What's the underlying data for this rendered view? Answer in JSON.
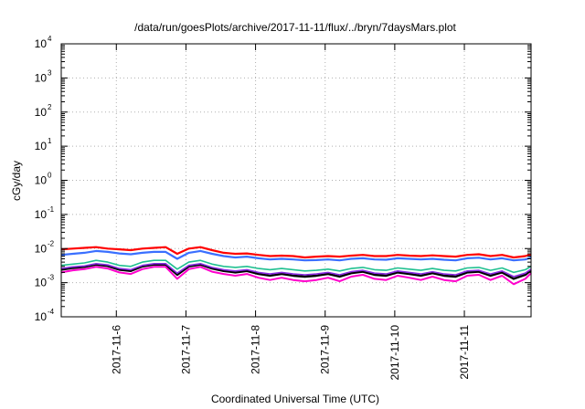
{
  "chart_data": {
    "type": "line",
    "title": "/data/run/goesPlots/archive/2017-11-11/flux/../bryn/7daysMars.plot",
    "xlabel": "Coordinated Universal Time (UTC)",
    "ylabel": "cGy/day",
    "yscale": "log",
    "ylim": [
      0.0001,
      10000
    ],
    "xlim": [
      "2017-11-05 05:00",
      "2017-11-11 23:00"
    ],
    "grid": true,
    "x_ticks": [
      "2017-11-6",
      "2017-11-7",
      "2017-11-8",
      "2017-11-9",
      "2017-11-10",
      "2017-11-11"
    ],
    "x_tick_dates": [
      "2017-11-06",
      "2017-11-07",
      "2017-11-08",
      "2017-11-09",
      "2017-11-10",
      "2017-11-11"
    ],
    "y_ticks": [
      {
        "value": 0.0001,
        "base": "10",
        "exp": "-4"
      },
      {
        "value": 0.001,
        "base": "10",
        "exp": "-3"
      },
      {
        "value": 0.01,
        "base": "10",
        "exp": "-2"
      },
      {
        "value": 0.1,
        "base": "10",
        "exp": "-1"
      },
      {
        "value": 1,
        "base": "10",
        "exp": "0"
      },
      {
        "value": 10,
        "base": "10",
        "exp": "1"
      },
      {
        "value": 100,
        "base": "10",
        "exp": "2"
      },
      {
        "value": 1000,
        "base": "10",
        "exp": "3"
      },
      {
        "value": 10000,
        "base": "10",
        "exp": "4"
      }
    ],
    "x": [
      "2017-11-05 05:00",
      "2017-11-05 09:00",
      "2017-11-05 13:00",
      "2017-11-05 17:00",
      "2017-11-05 21:00",
      "2017-11-06 01:00",
      "2017-11-06 05:00",
      "2017-11-06 09:00",
      "2017-11-06 13:00",
      "2017-11-06 17:00",
      "2017-11-06 21:00",
      "2017-11-07 01:00",
      "2017-11-07 05:00",
      "2017-11-07 09:00",
      "2017-11-07 13:00",
      "2017-11-07 17:00",
      "2017-11-07 21:00",
      "2017-11-08 01:00",
      "2017-11-08 05:00",
      "2017-11-08 09:00",
      "2017-11-08 13:00",
      "2017-11-08 17:00",
      "2017-11-08 21:00",
      "2017-11-09 01:00",
      "2017-11-09 05:00",
      "2017-11-09 09:00",
      "2017-11-09 13:00",
      "2017-11-09 17:00",
      "2017-11-09 21:00",
      "2017-11-10 01:00",
      "2017-11-10 05:00",
      "2017-11-10 09:00",
      "2017-11-10 13:00",
      "2017-11-10 17:00",
      "2017-11-10 21:00",
      "2017-11-11 01:00",
      "2017-11-11 05:00",
      "2017-11-11 09:00",
      "2017-11-11 13:00",
      "2017-11-11 17:00",
      "2017-11-11 21:00",
      "2017-11-11 23:00"
    ],
    "series": [
      {
        "color": "#ff0000",
        "width": 2.2,
        "values": [
          0.0095,
          0.01,
          0.0105,
          0.011,
          0.01,
          0.0095,
          0.009,
          0.01,
          0.0105,
          0.011,
          0.007,
          0.01,
          0.011,
          0.009,
          0.0075,
          0.007,
          0.0072,
          0.0065,
          0.006,
          0.0062,
          0.006,
          0.0055,
          0.0058,
          0.006,
          0.0058,
          0.0062,
          0.0065,
          0.006,
          0.006,
          0.0065,
          0.0062,
          0.006,
          0.0063,
          0.006,
          0.0058,
          0.0065,
          0.0068,
          0.006,
          0.0065,
          0.0055,
          0.006,
          0.0068
        ]
      },
      {
        "color": "#3a6fff",
        "width": 2.2,
        "values": [
          0.0065,
          0.007,
          0.0075,
          0.0085,
          0.008,
          0.0072,
          0.0068,
          0.0075,
          0.008,
          0.008,
          0.005,
          0.0075,
          0.0085,
          0.007,
          0.006,
          0.0055,
          0.0058,
          0.0052,
          0.0048,
          0.005,
          0.0048,
          0.0045,
          0.0046,
          0.0048,
          0.0045,
          0.005,
          0.0052,
          0.0048,
          0.0047,
          0.0052,
          0.005,
          0.0048,
          0.005,
          0.0047,
          0.0045,
          0.0052,
          0.0054,
          0.0048,
          0.0052,
          0.0045,
          0.0048,
          0.0055
        ]
      },
      {
        "color": "#20c090",
        "width": 1.6,
        "values": [
          0.0032,
          0.0035,
          0.0038,
          0.0045,
          0.004,
          0.0032,
          0.003,
          0.004,
          0.0045,
          0.0045,
          0.0025,
          0.004,
          0.0045,
          0.0035,
          0.003,
          0.0028,
          0.003,
          0.0026,
          0.0024,
          0.0026,
          0.0024,
          0.0022,
          0.0023,
          0.0025,
          0.0022,
          0.0026,
          0.0028,
          0.0024,
          0.0023,
          0.0027,
          0.0025,
          0.0023,
          0.0026,
          0.0023,
          0.0022,
          0.0027,
          0.0028,
          0.0023,
          0.0027,
          0.002,
          0.0024,
          0.003
        ]
      },
      {
        "color": "#000000",
        "width": 2.4,
        "values": [
          0.0024,
          0.0027,
          0.0029,
          0.0034,
          0.0031,
          0.0024,
          0.0022,
          0.003,
          0.0034,
          0.0034,
          0.0017,
          0.003,
          0.0034,
          0.0026,
          0.0022,
          0.002,
          0.0022,
          0.0018,
          0.0016,
          0.0018,
          0.0016,
          0.0015,
          0.0016,
          0.0018,
          0.0015,
          0.0019,
          0.0021,
          0.0017,
          0.0016,
          0.002,
          0.0018,
          0.0016,
          0.0019,
          0.0016,
          0.0015,
          0.002,
          0.0021,
          0.0016,
          0.002,
          0.0013,
          0.0017,
          0.0023
        ]
      },
      {
        "color": "#8a2be2",
        "width": 1.6,
        "values": [
          0.0026,
          0.0029,
          0.0031,
          0.0036,
          0.0033,
          0.0026,
          0.0024,
          0.0032,
          0.0036,
          0.0036,
          0.0019,
          0.0032,
          0.0036,
          0.0028,
          0.0024,
          0.0022,
          0.0024,
          0.002,
          0.0018,
          0.002,
          0.0018,
          0.0017,
          0.0018,
          0.002,
          0.0017,
          0.0021,
          0.0023,
          0.0019,
          0.0018,
          0.0022,
          0.002,
          0.0018,
          0.0021,
          0.0018,
          0.0017,
          0.0022,
          0.0023,
          0.0018,
          0.0022,
          0.0015,
          0.0019,
          0.0025
        ]
      },
      {
        "color": "#ff00cc",
        "width": 2.0,
        "values": [
          0.002,
          0.0023,
          0.0025,
          0.0029,
          0.0026,
          0.002,
          0.0018,
          0.0025,
          0.0029,
          0.0029,
          0.0013,
          0.0025,
          0.0029,
          0.0021,
          0.0018,
          0.0016,
          0.0018,
          0.0014,
          0.0012,
          0.0014,
          0.0012,
          0.0011,
          0.0012,
          0.0014,
          0.0011,
          0.0015,
          0.0017,
          0.0013,
          0.0012,
          0.0016,
          0.0014,
          0.0012,
          0.0015,
          0.0012,
          0.0011,
          0.0016,
          0.0017,
          0.0012,
          0.0016,
          0.0009,
          0.0013,
          0.0019
        ]
      }
    ]
  }
}
